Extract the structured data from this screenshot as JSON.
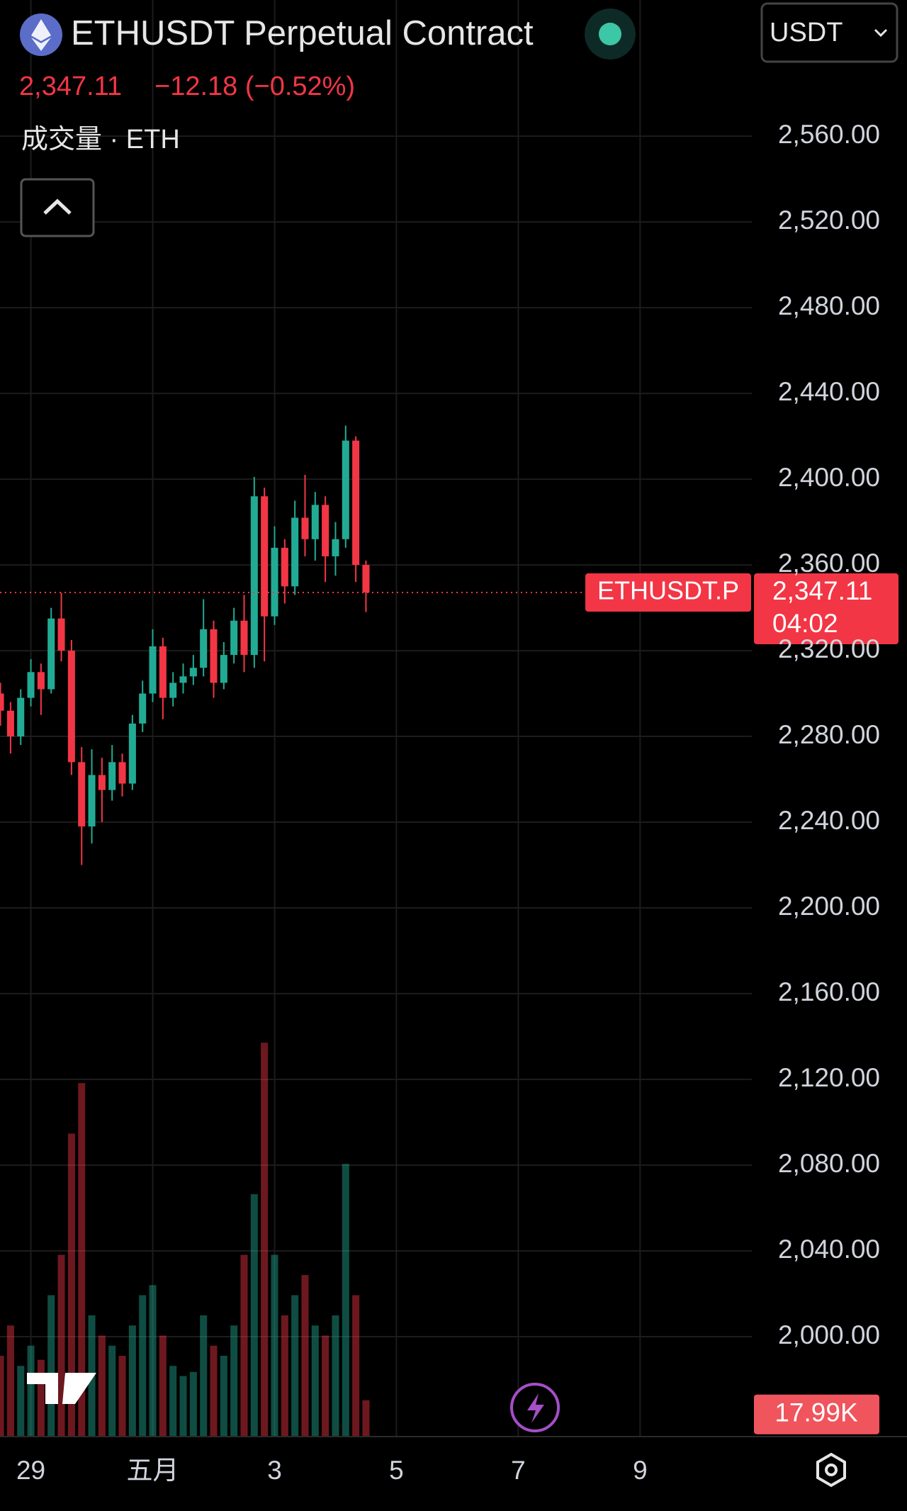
{
  "header": {
    "title": "ETHUSDT Perpetual Contract",
    "change": "−12.18 (−0.52%)",
    "indicator": "成交量 · ETH",
    "currency": "USDT"
  },
  "price_tag": {
    "symbol": "ETHUSDT.P",
    "countdown": "04:02"
  },
  "chart_data": {
    "type": "candlestick",
    "x": [
      -3,
      -2,
      -1,
      0,
      1,
      2,
      3,
      4,
      5,
      6,
      7,
      8,
      9,
      10,
      11,
      12,
      13,
      14,
      15,
      16,
      17,
      18,
      19,
      20,
      21,
      22,
      23,
      24,
      25,
      26,
      27,
      28,
      29,
      30,
      31,
      32,
      33
    ],
    "open": [
      2300,
      2292,
      2280,
      2298,
      2310,
      2302,
      2335,
      2320,
      2268,
      2238,
      2262,
      2255,
      2268,
      2258,
      2286,
      2300,
      2322,
      2298,
      2305,
      2308,
      2312,
      2330,
      2305,
      2318,
      2334,
      2318,
      2392,
      2336,
      2368,
      2350,
      2382,
      2372,
      2388,
      2364,
      2372,
      2418,
      2360
    ],
    "high": [
      2305,
      2296,
      2302,
      2316,
      2314,
      2340,
      2347,
      2325,
      2275,
      2274,
      2270,
      2276,
      2272,
      2290,
      2306,
      2330,
      2326,
      2310,
      2314,
      2318,
      2344,
      2334,
      2324,
      2340,
      2346,
      2401,
      2396,
      2378,
      2372,
      2390,
      2402,
      2394,
      2392,
      2380,
      2425,
      2420,
      2362
    ],
    "low": [
      2285,
      2272,
      2276,
      2294,
      2290,
      2300,
      2315,
      2262,
      2220,
      2230,
      2240,
      2250,
      2252,
      2255,
      2282,
      2296,
      2288,
      2294,
      2300,
      2304,
      2308,
      2298,
      2302,
      2314,
      2310,
      2312,
      2315,
      2332,
      2342,
      2346,
      2364,
      2362,
      2352,
      2355,
      2368,
      2352,
      2338
    ],
    "close": [
      2292,
      2280,
      2298,
      2310,
      2302,
      2335,
      2320,
      2268,
      2238,
      2262,
      2255,
      2268,
      2258,
      2286,
      2300,
      2322,
      2298,
      2305,
      2308,
      2312,
      2330,
      2305,
      2318,
      2334,
      2318,
      2392,
      2336,
      2368,
      2350,
      2382,
      2372,
      2388,
      2364,
      2372,
      2418,
      2360,
      2347.11
    ],
    "close_labels": [
      null,
      null,
      null,
      null,
      null,
      null,
      null,
      null,
      null,
      null,
      null,
      null,
      null,
      null,
      null,
      null,
      null,
      null,
      null,
      null,
      null,
      null,
      null,
      null,
      null,
      null,
      null,
      null,
      null,
      null,
      null,
      null,
      null,
      null,
      null,
      null,
      "2,347.11"
    ],
    "volume": {
      "values": [
        40,
        55,
        35,
        45,
        38,
        70,
        90,
        150,
        175,
        60,
        50,
        45,
        40,
        55,
        70,
        75,
        50,
        35,
        30,
        32,
        60,
        45,
        40,
        55,
        90,
        120,
        195,
        90,
        60,
        70,
        80,
        55,
        50,
        60,
        135,
        70,
        17.99
      ],
      "value_labels": [
        null,
        null,
        null,
        null,
        null,
        null,
        null,
        null,
        null,
        null,
        null,
        null,
        null,
        null,
        null,
        null,
        null,
        null,
        null,
        null,
        null,
        null,
        null,
        null,
        null,
        null,
        null,
        null,
        null,
        null,
        null,
        null,
        null,
        null,
        null,
        null,
        "17.99K"
      ],
      "ylim": [
        0,
        220
      ]
    },
    "up_color": "#22ab94",
    "down_color": "#f23645",
    "xlim": [
      -3.04,
      71
    ],
    "xticks": [
      {
        "value": 0,
        "label": "29"
      },
      {
        "value": 12,
        "label": "五月"
      },
      {
        "value": 24,
        "label": "3"
      },
      {
        "value": 36,
        "label": "5"
      },
      {
        "value": 48,
        "label": "7"
      },
      {
        "value": 60,
        "label": "9"
      }
    ],
    "ylim": [
      1953.4,
      2623.5
    ],
    "yticks": [
      {
        "value": 2000,
        "label": "2,000.00"
      },
      {
        "value": 2040,
        "label": "2,040.00"
      },
      {
        "value": 2080,
        "label": "2,080.00"
      },
      {
        "value": 2120,
        "label": "2,120.00"
      },
      {
        "value": 2160,
        "label": "2,160.00"
      },
      {
        "value": 2200,
        "label": "2,200.00"
      },
      {
        "value": 2240,
        "label": "2,240.00"
      },
      {
        "value": 2280,
        "label": "2,280.00"
      },
      {
        "value": 2320,
        "label": "2,320.00"
      },
      {
        "value": 2360,
        "label": "2,360.00"
      },
      {
        "value": 2400,
        "label": "2,400.00"
      },
      {
        "value": 2440,
        "label": "2,440.00"
      },
      {
        "value": 2480,
        "label": "2,480.00"
      },
      {
        "value": 2520,
        "label": "2,520.00"
      },
      {
        "value": 2560,
        "label": "2,560.00"
      }
    ],
    "grid": true
  }
}
